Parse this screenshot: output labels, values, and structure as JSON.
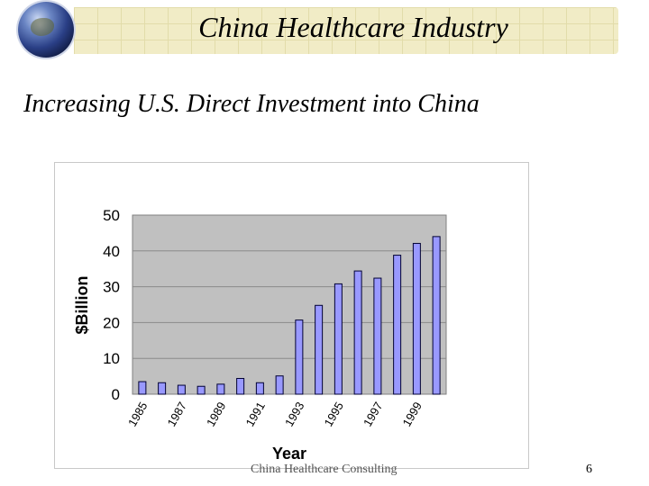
{
  "slide": {
    "title": "China Healthcare Industry",
    "subtitle": "Increasing U.S. Direct Investment into China",
    "footer": "China Healthcare Consulting",
    "page_number": "6"
  },
  "chart_data": {
    "type": "bar",
    "title": "",
    "xlabel": "Year",
    "ylabel": "$Billion",
    "categories": [
      "1985",
      "1986",
      "1987",
      "1988",
      "1989",
      "1990",
      "1991",
      "1992",
      "1993",
      "1994",
      "1995",
      "1996",
      "1997",
      "1998",
      "1999",
      "2000"
    ],
    "x_tick_labels": [
      "1985",
      "1987",
      "1989",
      "1991",
      "1993",
      "1995",
      "1997",
      "1999"
    ],
    "values": [
      3.5,
      3.2,
      2.5,
      2.2,
      2.8,
      4.4,
      3.2,
      5.1,
      20.7,
      24.8,
      30.8,
      34.4,
      32.4,
      38.8,
      42.1,
      44.0
    ],
    "ylim": [
      0,
      50
    ],
    "yticks": [
      0,
      10,
      20,
      30,
      40,
      50
    ],
    "grid": true,
    "legend": "none",
    "bar_color": "#9999ff",
    "plot_background": "#c0c0c0"
  }
}
